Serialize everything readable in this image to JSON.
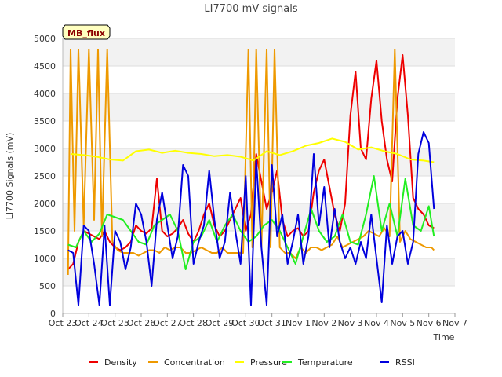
{
  "chart_data": {
    "type": "line",
    "title": "LI7700 mV signals",
    "xlabel": "Time",
    "ylabel": "LI7700 Signals (mV)",
    "badge": "MB_flux",
    "xlim": [
      0,
      15
    ],
    "ylim": [
      0,
      5000
    ],
    "x_ticks": [
      {
        "value": 0,
        "label": "Oct 23"
      },
      {
        "value": 1,
        "label": "Oct 24"
      },
      {
        "value": 2,
        "label": "Oct 25"
      },
      {
        "value": 3,
        "label": "Oct 26"
      },
      {
        "value": 4,
        "label": "Oct 27"
      },
      {
        "value": 5,
        "label": "Oct 28"
      },
      {
        "value": 6,
        "label": "Oct 29"
      },
      {
        "value": 7,
        "label": "Oct 30"
      },
      {
        "value": 8,
        "label": "Oct 31"
      },
      {
        "value": 9,
        "label": "Nov 1"
      },
      {
        "value": 10,
        "label": "Nov 2"
      },
      {
        "value": 11,
        "label": "Nov 3"
      },
      {
        "value": 12,
        "label": "Nov 4"
      },
      {
        "value": 13,
        "label": "Nov 5"
      },
      {
        "value": 14,
        "label": "Nov 6"
      },
      {
        "value": 15,
        "label": "Nov 7"
      }
    ],
    "y_ticks": [
      0,
      500,
      1000,
      1500,
      2000,
      2500,
      3000,
      3500,
      4000,
      4500,
      5000
    ],
    "series": [
      {
        "name": "Density",
        "color": "#ee0000",
        "x": [
          0.2,
          0.4,
          0.6,
          0.8,
          1.0,
          1.2,
          1.4,
          1.6,
          1.8,
          2.0,
          2.2,
          2.4,
          2.6,
          2.8,
          3.0,
          3.2,
          3.4,
          3.6,
          3.8,
          4.0,
          4.2,
          4.4,
          4.6,
          4.8,
          5.0,
          5.2,
          5.4,
          5.6,
          5.8,
          6.0,
          6.2,
          6.4,
          6.6,
          6.8,
          7.0,
          7.2,
          7.4,
          7.6,
          7.8,
          8.0,
          8.2,
          8.4,
          8.6,
          8.8,
          9.0,
          9.2,
          9.4,
          9.6,
          9.8,
          10.0,
          10.2,
          10.4,
          10.6,
          10.8,
          11.0,
          11.2,
          11.4,
          11.6,
          11.8,
          12.0,
          12.2,
          12.4,
          12.6,
          12.8,
          13.0,
          13.2,
          13.4,
          13.6,
          13.8,
          14.0,
          14.2
        ],
        "y": [
          800,
          900,
          1300,
          1500,
          1450,
          1400,
          1350,
          1500,
          1300,
          1200,
          1150,
          1200,
          1300,
          1600,
          1500,
          1450,
          1550,
          2450,
          1500,
          1400,
          1450,
          1550,
          1700,
          1450,
          1300,
          1500,
          1800,
          2000,
          1600,
          1400,
          1500,
          1700,
          1900,
          2100,
          1500,
          1800,
          2900,
          2400,
          1900,
          2200,
          2600,
          1700,
          1400,
          1500,
          1550,
          1400,
          1500,
          2200,
          2600,
          2800,
          2300,
          1800,
          1500,
          2000,
          3600,
          4400,
          3000,
          2800,
          3900,
          4600,
          3500,
          2800,
          2400,
          3900,
          4700,
          3600,
          2100,
          1900,
          1800,
          1600,
          1550
        ]
      },
      {
        "name": "Concentration",
        "color": "#ee9900",
        "x": [
          0.2,
          0.3,
          0.45,
          0.6,
          0.8,
          1.0,
          1.2,
          1.35,
          1.5,
          1.7,
          1.9,
          2.1,
          2.3,
          2.5,
          2.7,
          2.9,
          3.1,
          3.3,
          3.5,
          3.7,
          3.9,
          4.1,
          4.3,
          4.5,
          4.7,
          4.9,
          5.1,
          5.3,
          5.5,
          5.7,
          5.9,
          6.1,
          6.3,
          6.5,
          6.7,
          6.9,
          7.1,
          7.25,
          7.4,
          7.6,
          7.8,
          7.95,
          8.1,
          8.3,
          8.5,
          8.7,
          8.9,
          9.1,
          9.3,
          9.5,
          9.7,
          9.9,
          10.1,
          10.3,
          10.5,
          10.7,
          10.9,
          11.1,
          11.3,
          11.5,
          11.7,
          11.9,
          12.1,
          12.3,
          12.5,
          12.7,
          12.9,
          13.1,
          13.3,
          13.5,
          13.7,
          13.9,
          14.1,
          14.2
        ],
        "y": [
          700,
          4800,
          1500,
          4800,
          1600,
          4800,
          1700,
          4800,
          1400,
          4800,
          1300,
          1150,
          1100,
          1100,
          1100,
          1050,
          1100,
          1150,
          1150,
          1100,
          1200,
          1150,
          1200,
          1200,
          1100,
          1100,
          1150,
          1200,
          1150,
          1100,
          1100,
          1200,
          1100,
          1100,
          1100,
          1100,
          4800,
          1200,
          4800,
          1200,
          4800,
          1200,
          4800,
          1200,
          1100,
          1100,
          1000,
          1200,
          1100,
          1200,
          1200,
          1150,
          1200,
          1250,
          1400,
          1200,
          1250,
          1300,
          1350,
          1400,
          1500,
          1450,
          1400,
          1550,
          1400,
          4800,
          1300,
          1500,
          1350,
          1300,
          1250,
          1200,
          1200,
          1150
        ]
      },
      {
        "name": "Pressure",
        "color": "#ffff00",
        "x": [
          0.3,
          0.8,
          1.3,
          1.8,
          2.3,
          2.8,
          3.3,
          3.8,
          4.3,
          4.8,
          5.3,
          5.8,
          6.3,
          6.8,
          7.3,
          7.8,
          8.3,
          8.8,
          9.3,
          9.8,
          10.3,
          10.8,
          11.3,
          11.8,
          12.3,
          12.8,
          13.3,
          13.8,
          14.2
        ],
        "y": [
          2900,
          2880,
          2850,
          2800,
          2780,
          2950,
          2980,
          2920,
          2960,
          2920,
          2900,
          2860,
          2880,
          2850,
          2780,
          2950,
          2880,
          2950,
          3050,
          3100,
          3180,
          3120,
          2980,
          3020,
          2950,
          2900,
          2800,
          2780,
          2750
        ]
      },
      {
        "name": "Temperature",
        "color": "#22ee22",
        "x": [
          0.2,
          0.5,
          0.8,
          1.1,
          1.4,
          1.7,
          2.0,
          2.3,
          2.6,
          2.9,
          3.2,
          3.5,
          3.8,
          4.1,
          4.4,
          4.7,
          5.0,
          5.3,
          5.6,
          5.9,
          6.2,
          6.5,
          6.8,
          7.1,
          7.4,
          7.7,
          8.0,
          8.3,
          8.6,
          8.9,
          9.2,
          9.5,
          9.8,
          10.1,
          10.4,
          10.7,
          11.0,
          11.3,
          11.6,
          11.9,
          12.2,
          12.5,
          12.8,
          13.1,
          13.4,
          13.7,
          14.0,
          14.2
        ],
        "y": [
          1250,
          1200,
          1500,
          1300,
          1450,
          1800,
          1750,
          1700,
          1500,
          1300,
          1250,
          1600,
          1700,
          1800,
          1500,
          800,
          1300,
          1400,
          1700,
          1300,
          1600,
          1800,
          1500,
          1300,
          1400,
          1600,
          1700,
          1500,
          1200,
          900,
          1400,
          1900,
          1500,
          1300,
          1400,
          1800,
          1300,
          1250,
          1800,
          2500,
          1500,
          2000,
          1400,
          2450,
          1600,
          1500,
          1950,
          1400
        ]
      },
      {
        "name": "RSSI",
        "color": "#0000dd",
        "x": [
          0.2,
          0.4,
          0.6,
          0.8,
          1.0,
          1.2,
          1.4,
          1.6,
          1.8,
          2.0,
          2.2,
          2.4,
          2.6,
          2.8,
          3.0,
          3.2,
          3.4,
          3.6,
          3.8,
          4.0,
          4.2,
          4.4,
          4.6,
          4.8,
          5.0,
          5.2,
          5.4,
          5.6,
          5.8,
          6.0,
          6.2,
          6.4,
          6.6,
          6.8,
          7.0,
          7.2,
          7.4,
          7.6,
          7.8,
          8.0,
          8.2,
          8.4,
          8.6,
          8.8,
          9.0,
          9.2,
          9.4,
          9.6,
          9.8,
          10.0,
          10.2,
          10.4,
          10.6,
          10.8,
          11.0,
          11.2,
          11.4,
          11.6,
          11.8,
          12.0,
          12.2,
          12.4,
          12.6,
          12.8,
          13.0,
          13.2,
          13.4,
          13.6,
          13.8,
          14.0,
          14.2
        ],
        "y": [
          1150,
          1100,
          150,
          1600,
          1500,
          900,
          150,
          1600,
          150,
          1500,
          1300,
          800,
          1200,
          2000,
          1800,
          1300,
          500,
          1700,
          2200,
          1600,
          1000,
          1400,
          2700,
          2500,
          900,
          1300,
          1600,
          2600,
          1700,
          1000,
          1300,
          2200,
          1500,
          900,
          2500,
          150,
          2800,
          1200,
          150,
          2700,
          1400,
          1800,
          900,
          1300,
          1800,
          900,
          1400,
          2900,
          1600,
          2300,
          1200,
          1900,
          1300,
          1000,
          1200,
          900,
          1300,
          1000,
          1800,
          1000,
          200,
          1600,
          900,
          1400,
          1500,
          900,
          1300,
          2900,
          3300,
          3100,
          1900
        ]
      }
    ],
    "legend": [
      "Density",
      "Concentration",
      "Pressure",
      "Temperature",
      "RSSI"
    ],
    "grid": true,
    "legend_position": "bottom"
  }
}
